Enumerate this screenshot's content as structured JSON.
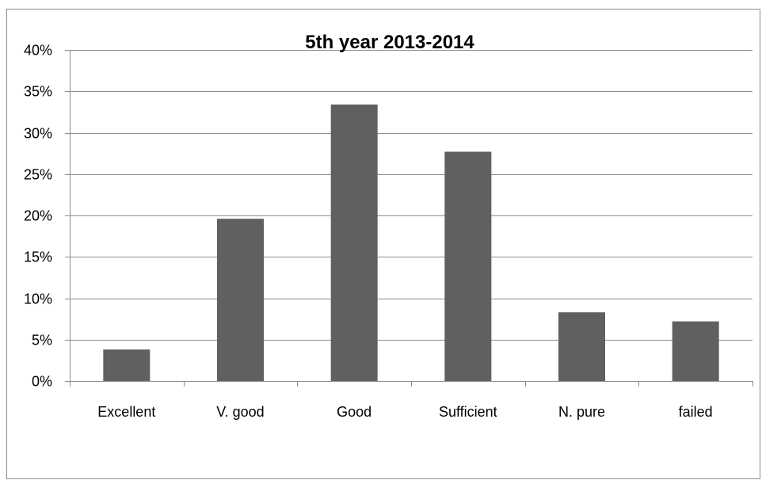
{
  "chart_data": {
    "type": "bar",
    "title": "5th year 2013-2014",
    "categories": [
      "Excellent",
      "V. good",
      "Good",
      "Sufficient",
      "N. pure",
      "failed"
    ],
    "values": [
      3.8,
      19.6,
      33.4,
      27.7,
      8.3,
      7.2
    ],
    "ylim": [
      0,
      40
    ],
    "yticks": [
      0,
      5,
      10,
      15,
      20,
      25,
      30,
      35,
      40
    ],
    "ytick_format": "%",
    "xlabel": "",
    "ylabel": "",
    "grid": true,
    "legend": "none",
    "bar_color": "#606060",
    "gridline_color": "#8c8c8c",
    "axis_color": "#8c8c8c"
  }
}
